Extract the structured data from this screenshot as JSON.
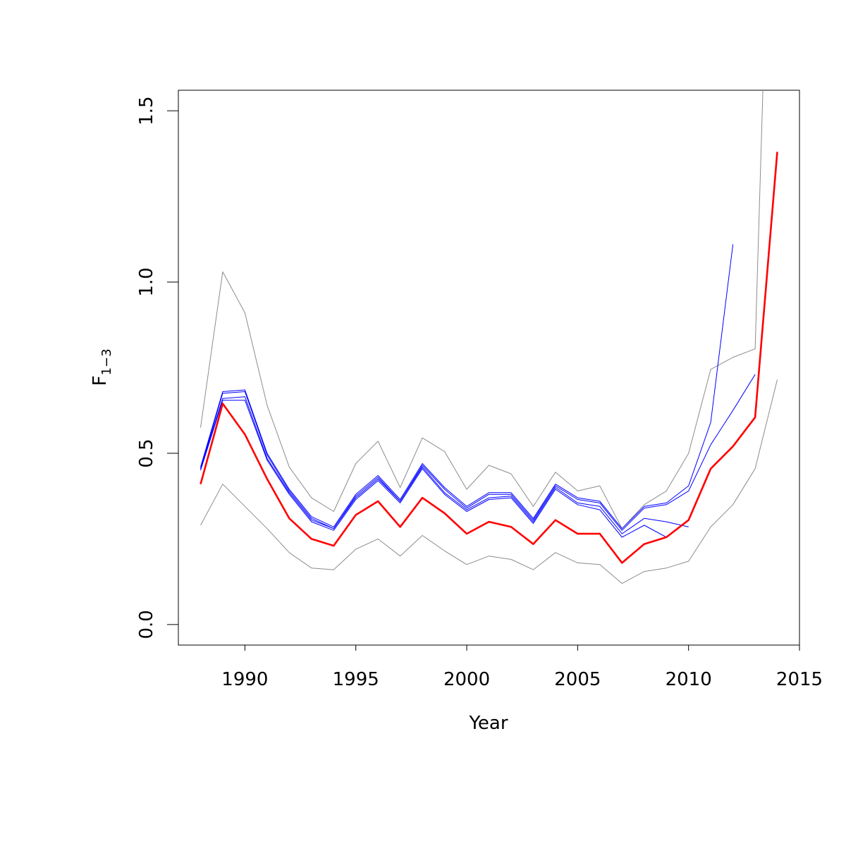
{
  "chart_data": {
    "type": "line",
    "xlabel": "Year",
    "ylabel": {
      "base": "F",
      "subscript": "1−3"
    },
    "xlim": [
      1987,
      2015
    ],
    "ylim": [
      -0.06,
      1.56
    ],
    "x_ticks": [
      1990,
      1995,
      2000,
      2005,
      2010,
      2015
    ],
    "y_ticks": [
      0.0,
      0.5,
      1.0,
      1.5
    ],
    "x_tick_labels": [
      "1990",
      "1995",
      "2000",
      "2005",
      "2010",
      "2015"
    ],
    "y_tick_labels": [
      "0.0",
      "0.5",
      "1.0",
      "1.5"
    ],
    "grid": false,
    "legend": "none",
    "colors": {
      "estimate": "#ff0000",
      "retro": "#0000ff",
      "bounds": "#8c8c8c"
    },
    "series": [
      {
        "role": "bounds",
        "x": [
          1988,
          1989,
          1990,
          1991,
          1992,
          1993,
          1994,
          1995,
          1996,
          1997,
          1998,
          1999,
          2000,
          2001,
          2002,
          2003,
          2004,
          2005,
          2006,
          2007,
          2008,
          2009,
          2010,
          2011,
          2012,
          2013,
          2013.35
        ],
        "y": [
          0.575,
          1.03,
          0.91,
          0.64,
          0.46,
          0.37,
          0.33,
          0.47,
          0.535,
          0.4,
          0.545,
          0.505,
          0.395,
          0.465,
          0.44,
          0.345,
          0.445,
          0.39,
          0.405,
          0.28,
          0.35,
          0.39,
          0.5,
          0.745,
          0.78,
          0.805,
          1.56
        ]
      },
      {
        "role": "bounds",
        "x": [
          1988,
          1989,
          1990,
          1991,
          1992,
          1993,
          1994,
          1995,
          1996,
          1997,
          1998,
          1999,
          2000,
          2001,
          2002,
          2003,
          2004,
          2005,
          2006,
          2007,
          2008,
          2009,
          2010,
          2011,
          2012,
          2013,
          2014
        ],
        "y": [
          0.29,
          0.41,
          0.345,
          0.28,
          0.21,
          0.165,
          0.16,
          0.22,
          0.25,
          0.2,
          0.26,
          0.215,
          0.175,
          0.2,
          0.19,
          0.16,
          0.21,
          0.18,
          0.175,
          0.12,
          0.155,
          0.165,
          0.185,
          0.285,
          0.35,
          0.455,
          0.715
        ]
      },
      {
        "role": "retro",
        "x": [
          1988,
          1989,
          1990,
          1991,
          1992,
          1993,
          1994,
          1995,
          1996,
          1997,
          1998,
          1999,
          2000,
          2001,
          2002,
          2003,
          2004,
          2005,
          2006,
          2007,
          2008,
          2009,
          2010,
          2011,
          2012
        ],
        "y": [
          0.46,
          0.68,
          0.685,
          0.5,
          0.395,
          0.315,
          0.285,
          0.38,
          0.435,
          0.365,
          0.47,
          0.4,
          0.345,
          0.385,
          0.385,
          0.31,
          0.41,
          0.37,
          0.36,
          0.28,
          0.345,
          0.355,
          0.405,
          0.59,
          1.11
        ]
      },
      {
        "role": "retro",
        "x": [
          1988,
          1989,
          1990,
          1991,
          1992,
          1993,
          1994,
          1995,
          1996,
          1997,
          1998,
          1999,
          2000,
          2001,
          2002,
          2003,
          2004,
          2005,
          2006,
          2007,
          2008,
          2009,
          2010,
          2011,
          2012,
          2013
        ],
        "y": [
          0.455,
          0.675,
          0.68,
          0.495,
          0.39,
          0.31,
          0.28,
          0.375,
          0.43,
          0.36,
          0.465,
          0.395,
          0.34,
          0.38,
          0.38,
          0.305,
          0.405,
          0.365,
          0.355,
          0.275,
          0.34,
          0.35,
          0.39,
          0.525,
          0.625,
          0.73
        ]
      },
      {
        "role": "retro",
        "x": [
          1988,
          1989,
          1990,
          1991,
          1992,
          1993,
          1994,
          1995,
          1996,
          1997,
          1998,
          1999,
          2000,
          2001,
          2002,
          2003,
          2004,
          2005,
          2006,
          2007,
          2008,
          2009,
          2010
        ],
        "y": [
          0.455,
          0.66,
          0.665,
          0.485,
          0.385,
          0.305,
          0.28,
          0.37,
          0.425,
          0.36,
          0.46,
          0.385,
          0.335,
          0.37,
          0.375,
          0.3,
          0.4,
          0.355,
          0.345,
          0.265,
          0.31,
          0.3,
          0.285
        ]
      },
      {
        "role": "retro",
        "x": [
          1988,
          1989,
          1990,
          1991,
          1992,
          1993,
          1994,
          1995,
          1996,
          1997,
          1998,
          1999,
          2000,
          2001,
          2002,
          2003,
          2004,
          2005,
          2006,
          2007,
          2008,
          2009
        ],
        "y": [
          0.45,
          0.655,
          0.655,
          0.48,
          0.38,
          0.3,
          0.275,
          0.365,
          0.42,
          0.355,
          0.455,
          0.38,
          0.33,
          0.365,
          0.37,
          0.295,
          0.395,
          0.35,
          0.335,
          0.255,
          0.29,
          0.255
        ]
      },
      {
        "role": "estimate",
        "x": [
          1988,
          1989,
          1990,
          1991,
          1992,
          1993,
          1994,
          1995,
          1996,
          1997,
          1998,
          1999,
          2000,
          2001,
          2002,
          2003,
          2004,
          2005,
          2006,
          2007,
          2008,
          2009,
          2010,
          2011,
          2012,
          2013,
          2014
        ],
        "y": [
          0.41,
          0.645,
          0.555,
          0.425,
          0.31,
          0.25,
          0.23,
          0.32,
          0.36,
          0.285,
          0.37,
          0.325,
          0.265,
          0.3,
          0.285,
          0.235,
          0.305,
          0.265,
          0.265,
          0.18,
          0.235,
          0.255,
          0.305,
          0.455,
          0.52,
          0.605,
          1.38
        ]
      }
    ]
  }
}
